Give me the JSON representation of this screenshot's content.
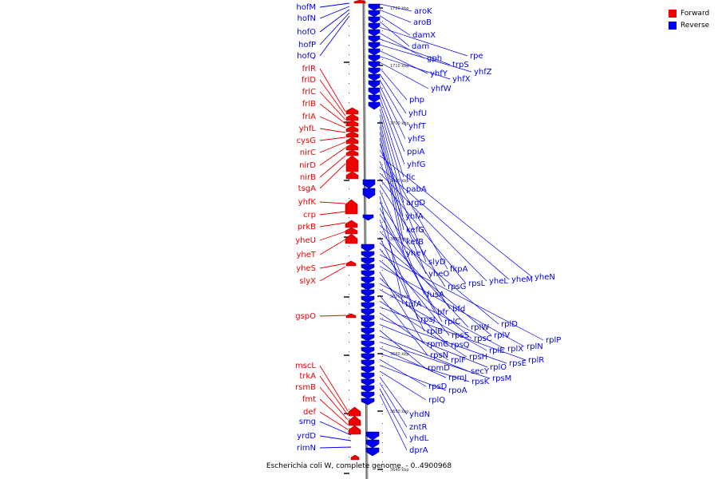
{
  "legend": {
    "forward": {
      "label": "Forward",
      "color": "#ee0000"
    },
    "reverse": {
      "label": "Reverse",
      "color": "#0000ee"
    }
  },
  "caption": "Escherichia coli W, complete genome. - 0..4900968",
  "ticks": [
    "1720 kbp",
    "1710 kbp",
    "3700 kbp",
    "3690 kbp",
    "3680 kbp",
    "3670 kbp",
    "3660 kbp",
    "3650 kbp",
    "3640 kbp"
  ],
  "left_genes": [
    "hofM",
    "hofN",
    "hofO",
    "hofP",
    "hofQ",
    "frlR",
    "frlD",
    "frlC",
    "frlB",
    "frlA",
    "yhfL",
    "cysG",
    "nirC",
    "nirD",
    "nirB",
    "tsgA",
    "yhfK",
    "crp",
    "prkB",
    "yheU",
    "yheT",
    "yheS",
    "slyX",
    "gspO",
    "mscL",
    "trkA",
    "rsmB",
    "fmt",
    "def",
    "smg",
    "yrdD",
    "rimN"
  ],
  "right_genes": [
    "aroK",
    "aroB",
    "damX",
    "dam",
    "rpe",
    "gph",
    "trpS",
    "yhfZ",
    "yhfY",
    "yhfX",
    "yhfW",
    "php",
    "yhfU",
    "yhfT",
    "yhfS",
    "ppiA",
    "yhfG",
    "fic",
    "pabA",
    "argD",
    "yhfA",
    "kefG",
    "kefB",
    "yheV",
    "slyD",
    "fkpA",
    "yheN",
    "yheO",
    "yheM",
    "yheL",
    "rpsL",
    "rpsG",
    "fusA",
    "tufA",
    "bfd",
    "bfr",
    "rplC",
    "rpsJ",
    "rplD",
    "rplW",
    "rplB",
    "rplV",
    "rpsS",
    "rplP",
    "rpsC",
    "rplN",
    "rpmC",
    "rpsQ",
    "rplX",
    "rplE",
    "rpsN",
    "rpsH",
    "rplR",
    "rplF",
    "rpsE",
    "rplO",
    "rpmD",
    "secY",
    "rpsM",
    "rpmJ",
    "rpsK",
    "rpsD",
    "rpoA",
    "rplQ",
    "yhdN",
    "zntR",
    "yhdL",
    "dprA"
  ]
}
